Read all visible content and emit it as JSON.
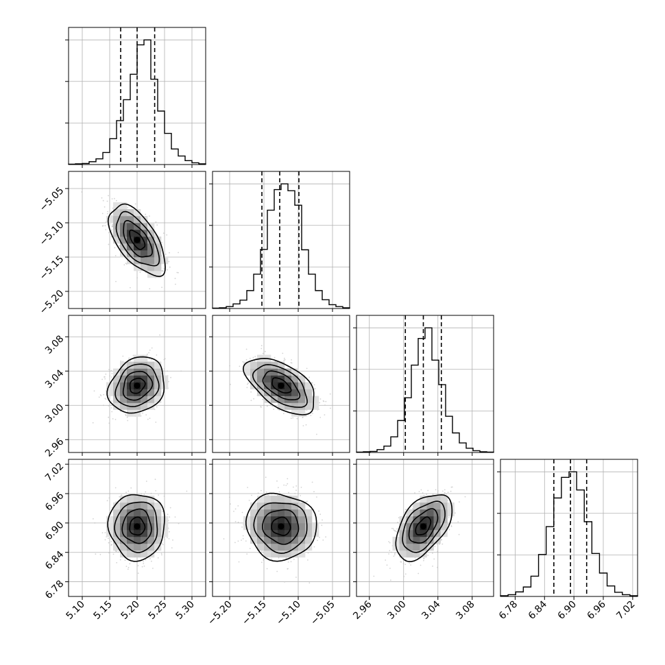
{
  "chart_data": {
    "type": "corner",
    "title": "",
    "variables": [
      {
        "name": "",
        "range": [
          5.075,
          5.325
        ],
        "ticks": [
          "5.10",
          "5.15",
          "5.20",
          "5.25",
          "5.30"
        ],
        "quantiles": [
          5.17,
          5.2,
          5.232
        ],
        "hist": [
          1,
          2,
          3,
          8,
          16,
          34,
          73,
          124,
          183,
          255,
          338,
          352,
          241,
          151,
          88,
          44,
          24,
          11,
          5,
          2
        ]
      },
      {
        "name": "",
        "range": [
          -5.225,
          -5.025
        ],
        "ticks": [
          "−5.20",
          "−5.15",
          "−5.10",
          "−5.05"
        ],
        "quantiles": [
          -5.153,
          -5.127,
          -5.099
        ],
        "hist": [
          1,
          2,
          5,
          12,
          22,
          47,
          90,
          155,
          258,
          312,
          327,
          309,
          271,
          154,
          90,
          47,
          23,
          10,
          5,
          2
        ]
      },
      {
        "name": "",
        "range": [
          2.945,
          3.105
        ],
        "ticks": [
          "2.96",
          "3.00",
          "3.04",
          "3.08"
        ],
        "quantiles": [
          3.002,
          3.023,
          3.044
        ],
        "hist": [
          1,
          2,
          3,
          8,
          18,
          44,
          90,
          154,
          246,
          321,
          351,
          260,
          191,
          102,
          55,
          27,
          12,
          5,
          2,
          1
        ]
      },
      {
        "name": "",
        "range": [
          6.75,
          7.03
        ],
        "ticks": [
          "6.78",
          "6.84",
          "6.90",
          "6.96",
          "7.02"
        ],
        "quantiles": [
          6.859,
          6.893,
          6.926
        ],
        "hist": [
          2,
          5,
          13,
          27,
          58,
          120,
          200,
          282,
          341,
          357,
          305,
          214,
          123,
          67,
          30,
          12,
          5,
          2
        ]
      }
    ],
    "pairs": [
      {
        "row": 1,
        "col": 0,
        "mean": [
          5.2,
          -5.125
        ],
        "sd": [
          0.025,
          0.025
        ],
        "rho": -0.6
      },
      {
        "row": 2,
        "col": 0,
        "mean": [
          5.2,
          3.023
        ],
        "sd": [
          0.025,
          0.016
        ],
        "rho": 0.2
      },
      {
        "row": 2,
        "col": 1,
        "mean": [
          -5.125,
          3.023
        ],
        "sd": [
          0.025,
          0.016
        ],
        "rho": -0.55
      },
      {
        "row": 3,
        "col": 0,
        "mean": [
          5.2,
          6.893
        ],
        "sd": [
          0.025,
          0.033
        ],
        "rho": 0.0
      },
      {
        "row": 3,
        "col": 1,
        "mean": [
          -5.125,
          6.893
        ],
        "sd": [
          0.025,
          0.033
        ],
        "rho": -0.05
      },
      {
        "row": 3,
        "col": 2,
        "mean": [
          3.023,
          6.893
        ],
        "sd": [
          0.016,
          0.033
        ],
        "rho": 0.5
      }
    ],
    "grid": true,
    "colors": {
      "line": "#000000",
      "grid": "#b0b0b0",
      "points": "#c0c0c0"
    }
  }
}
